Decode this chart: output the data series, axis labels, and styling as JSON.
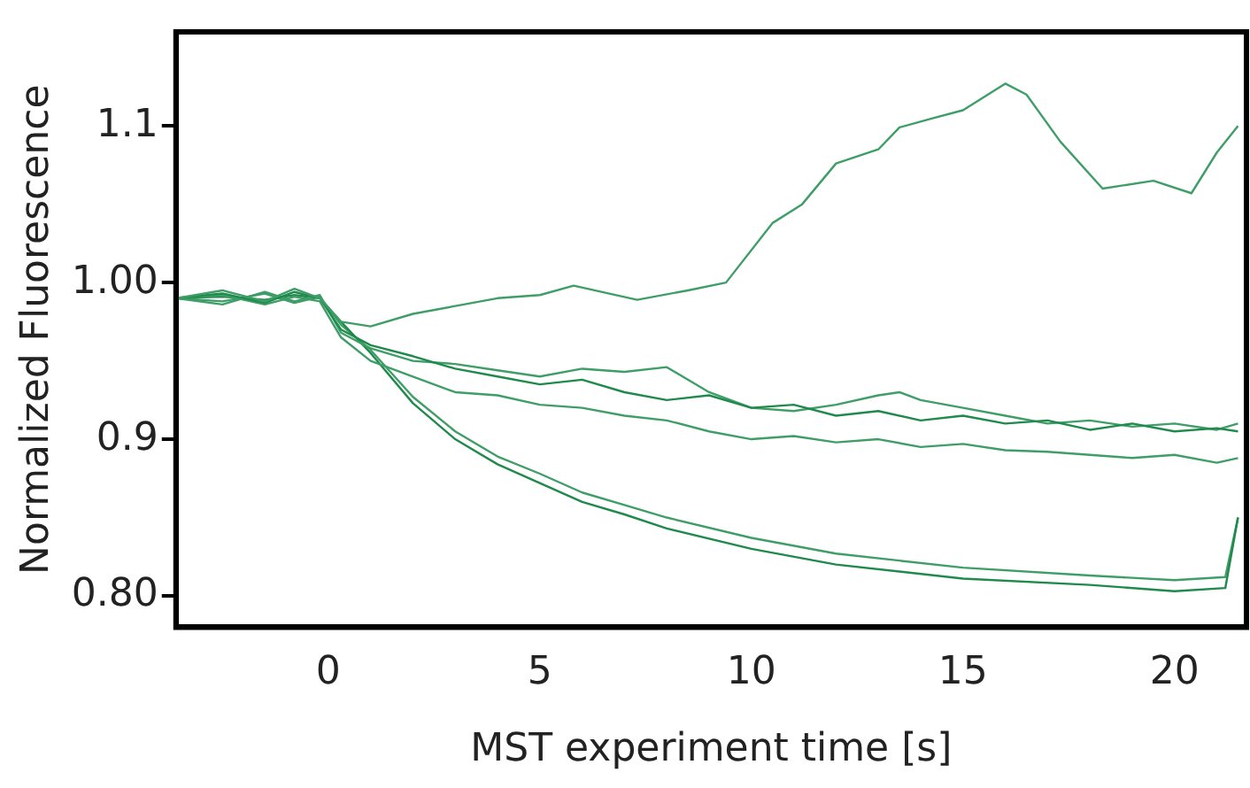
{
  "chart_data": {
    "type": "line",
    "xlabel": "MST experiment time [s]",
    "ylabel": "Normalized Fluorescence",
    "xlim": [
      -3.6,
      21.7
    ],
    "ylim": [
      0.78,
      1.16
    ],
    "xticks": [
      0,
      5,
      10,
      15,
      20
    ],
    "yticks": [
      {
        "value": 0.8,
        "label": "0.80"
      },
      0.9,
      {
        "value": 1,
        "label": "1.00"
      },
      1.1
    ],
    "grid": false,
    "legend": false,
    "marker": "none",
    "line_style": "solid",
    "series": [
      {
        "color": "#3f9e68",
        "x": [
          -3.6,
          -2.5,
          -1.5,
          -0.8,
          -0.2,
          0.3,
          1,
          2,
          3,
          4,
          5,
          5.8,
          7.3,
          8.5,
          9.4,
          10.5,
          11.2,
          12,
          13,
          13.5,
          14.3,
          15,
          16,
          16.5,
          17.3,
          18.3,
          19.5,
          20.4,
          21,
          21.5
        ],
        "values": [
          0.99,
          0.995,
          0.988,
          0.996,
          0.99,
          0.975,
          0.972,
          0.98,
          0.985,
          0.99,
          0.992,
          0.998,
          0.989,
          0.995,
          1.0,
          1.038,
          1.05,
          1.076,
          1.085,
          1.099,
          1.105,
          1.11,
          1.127,
          1.12,
          1.09,
          1.06,
          1.065,
          1.057,
          1.083,
          1.1
        ]
      },
      {
        "color": "#1f8a4c",
        "x": [
          -3.6,
          -2.5,
          -1.5,
          -0.8,
          -0.2,
          0.3,
          1,
          2,
          3,
          4,
          5,
          6,
          7,
          8,
          9,
          10,
          11,
          12,
          13,
          14,
          15,
          16,
          17,
          18,
          19,
          20,
          21,
          21.5
        ],
        "values": [
          0.99,
          0.993,
          0.987,
          0.994,
          0.99,
          0.97,
          0.96,
          0.953,
          0.945,
          0.94,
          0.935,
          0.938,
          0.93,
          0.925,
          0.928,
          0.92,
          0.922,
          0.915,
          0.918,
          0.912,
          0.915,
          0.91,
          0.912,
          0.906,
          0.91,
          0.905,
          0.907,
          0.905
        ]
      },
      {
        "color": "#3f9e68",
        "x": [
          -3.6,
          -2.5,
          -1.5,
          -0.8,
          -0.2,
          0.3,
          1,
          2,
          3,
          4,
          5,
          6,
          7,
          8,
          9,
          10,
          11,
          12,
          13,
          13.5,
          14,
          15,
          16,
          17,
          18,
          19,
          20,
          21,
          21.5
        ],
        "values": [
          0.99,
          0.986,
          0.994,
          0.988,
          0.992,
          0.968,
          0.958,
          0.95,
          0.948,
          0.944,
          0.94,
          0.945,
          0.943,
          0.946,
          0.93,
          0.92,
          0.918,
          0.922,
          0.928,
          0.93,
          0.925,
          0.92,
          0.915,
          0.91,
          0.912,
          0.908,
          0.91,
          0.906,
          0.91
        ]
      },
      {
        "color": "#3f9e68",
        "x": [
          -3.6,
          -2.5,
          -1.5,
          -0.8,
          -0.2,
          0.3,
          1,
          2,
          3,
          4,
          5,
          6,
          7,
          8,
          9,
          10,
          11,
          12,
          13,
          14,
          15,
          16,
          17,
          18,
          19,
          20,
          21,
          21.5
        ],
        "values": [
          0.99,
          0.992,
          0.986,
          0.991,
          0.988,
          0.965,
          0.95,
          0.94,
          0.93,
          0.928,
          0.922,
          0.92,
          0.915,
          0.912,
          0.905,
          0.9,
          0.902,
          0.898,
          0.9,
          0.895,
          0.897,
          0.893,
          0.892,
          0.89,
          0.888,
          0.89,
          0.885,
          0.888
        ]
      },
      {
        "color": "#1f8a4c",
        "x": [
          -3.6,
          -2.5,
          -1.5,
          -0.8,
          -0.2,
          0.3,
          1,
          2,
          3,
          4,
          5,
          6,
          7,
          8,
          10,
          12,
          15,
          18,
          20,
          21.2,
          21.5
        ],
        "values": [
          0.99,
          0.991,
          0.989,
          0.992,
          0.99,
          0.975,
          0.955,
          0.923,
          0.9,
          0.884,
          0.872,
          0.86,
          0.852,
          0.843,
          0.83,
          0.82,
          0.811,
          0.807,
          0.803,
          0.805,
          0.85
        ]
      },
      {
        "color": "#3f9e68",
        "x": [
          -3.6,
          -2.5,
          -1.5,
          -0.8,
          -0.2,
          0.3,
          1,
          2,
          3,
          4,
          5,
          6,
          7,
          8,
          10,
          12,
          15,
          18,
          20,
          21.2,
          21.5
        ],
        "values": [
          0.99,
          0.988,
          0.993,
          0.987,
          0.991,
          0.973,
          0.957,
          0.927,
          0.905,
          0.889,
          0.878,
          0.866,
          0.858,
          0.85,
          0.837,
          0.827,
          0.818,
          0.813,
          0.81,
          0.812,
          0.85
        ]
      }
    ]
  }
}
